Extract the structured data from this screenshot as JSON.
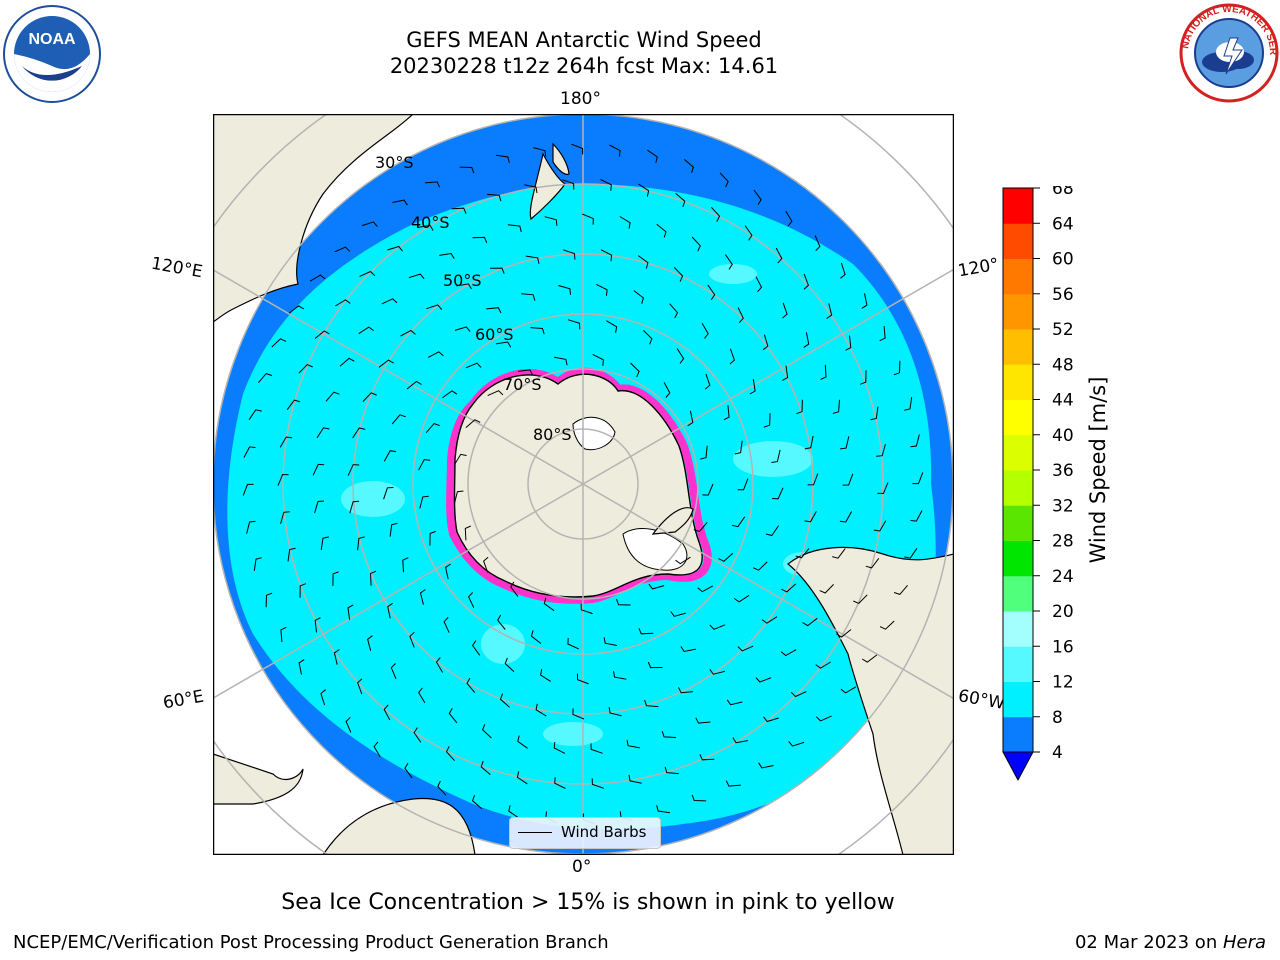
{
  "header": {
    "title_line1": "GEFS MEAN Antarctic Wind Speed",
    "title_line2": "20230228 t12z 264h fcst   Max: 14.61"
  },
  "logos": {
    "noaa_text": "NOAA",
    "nws_ring_text": "NATIONAL WEATHER SERVICE"
  },
  "map": {
    "projection": "south polar stereographic",
    "longitude_labels": {
      "top": "180°",
      "bottom": "0°",
      "upper_left": "120°E",
      "upper_right": "120°",
      "lower_left": "60°E",
      "lower_right": "60°W"
    },
    "latitude_labels": [
      "30°S",
      "40°S",
      "50°S",
      "60°S",
      "70°S",
      "80°S"
    ],
    "legend_label": "Wind Barbs",
    "colors": {
      "land": "#eeecdc",
      "ocean_4_8": "#0a7dff",
      "ocean_8_12": "#00f0ff",
      "ocean_12_16": "#55f9ff",
      "sea_ice_edge": "#ff33cc",
      "grid": "#b4b4b4"
    }
  },
  "colorbar": {
    "label": "Wind Speed [m/s]",
    "ticks": [
      "68",
      "64",
      "60",
      "56",
      "52",
      "48",
      "44",
      "40",
      "36",
      "32",
      "28",
      "24",
      "20",
      "16",
      "12",
      "8",
      "4"
    ],
    "colors_bottom_to_top": [
      "#0a7dff",
      "#00f0ff",
      "#55f9ff",
      "#a2fffe",
      "#50ff7c",
      "#00e600",
      "#5ae600",
      "#b4ff00",
      "#dcff00",
      "#ffff00",
      "#ffe600",
      "#ffbe00",
      "#ff9600",
      "#ff7800",
      "#ff4b00",
      "#ff0000"
    ],
    "under_color": "#0000ff"
  },
  "caption": "Sea Ice Concentration > 15% is shown in pink to yellow",
  "footer": {
    "left": "NCEP/EMC/Verification Post Processing Product Generation Branch",
    "right_date": "02 Mar 2023 on ",
    "right_host": "Hera"
  }
}
